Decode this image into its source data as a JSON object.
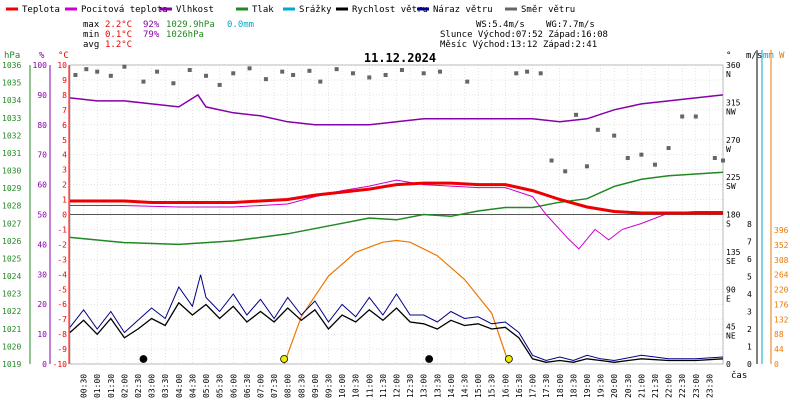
{
  "chart_data": {
    "type": "line",
    "title": "11.12.2024",
    "legend": [
      {
        "label": "Teplota",
        "color": "#ee0000"
      },
      {
        "label": "Pocitová teplota",
        "color": "#cc00cc"
      },
      {
        "label": "Vlhkost",
        "color": "#8800aa"
      },
      {
        "label": "Tlak",
        "color": "#228822"
      },
      {
        "label": "Srážky",
        "color": "#00aacc"
      },
      {
        "label": "Rychlost větru",
        "color": "#000000"
      },
      {
        "label": "Náraz větru",
        "color": "#000088"
      },
      {
        "label": "Směr větru",
        "color": "#666666"
      }
    ],
    "stats": {
      "max_label": "max",
      "max_temp": "2.2°C",
      "max_hum": "92%",
      "max_press": "1029.9hPa",
      "max_rain": "0.0mm",
      "min_label": "min",
      "min_temp": "0.1°C",
      "min_hum": "79%",
      "min_press": "1026hPa",
      "avg_label": "avg",
      "avg_temp": "1.2°C"
    },
    "info": {
      "ws": "WS:5.4m/s",
      "wg": "WG:7.7m/s",
      "sun": "Slunce Východ:07:52  Západ:16:08",
      "moon": "Měsíc  Východ:13:12  Západ:2:41"
    },
    "axis_units": {
      "hpa": "hPa",
      "pct": "%",
      "degc": "°C",
      "deg": "°",
      "ms": "m/s",
      "mm": "mm",
      "w": "W",
      "time": "čas"
    },
    "temp_ticks": [
      "10",
      "9",
      "8",
      "7",
      "6",
      "5",
      "4",
      "3",
      "2",
      "1",
      "0",
      "-1",
      "-2",
      "-3",
      "-4",
      "-5",
      "-6",
      "-7",
      "-8",
      "-9",
      "-10"
    ],
    "hpa_ticks": [
      "1036",
      "1035",
      "1034",
      "1033",
      "1032",
      "1031",
      "1030",
      "1029",
      "1028",
      "1027",
      "1026",
      "1025",
      "1024",
      "1023",
      "1022",
      "1021",
      "1020",
      "1019"
    ],
    "pct_ticks": [
      "100",
      "90",
      "80",
      "70",
      "60",
      "50",
      "40",
      "30",
      "20",
      "10",
      "0"
    ],
    "dir_ticks": [
      {
        "v": 360,
        "l": "360",
        "c": "N"
      },
      {
        "v": 315,
        "l": "315",
        "c": "NW"
      },
      {
        "v": 270,
        "l": "270",
        "c": "W"
      },
      {
        "v": 225,
        "l": "225",
        "c": "SW"
      },
      {
        "v": 180,
        "l": "180",
        "c": "S"
      },
      {
        "v": 135,
        "l": "135",
        "c": "SE"
      },
      {
        "v": 90,
        "l": "90",
        "c": "E"
      },
      {
        "v": 45,
        "l": "45",
        "c": "NE"
      },
      {
        "v": 0,
        "l": "0",
        "c": ""
      }
    ],
    "ms_ticks": [
      "8",
      "7",
      "6",
      "5",
      "4",
      "3",
      "2",
      "1",
      "0"
    ],
    "w_ticks": [
      "396",
      "352",
      "308",
      "264",
      "220",
      "176",
      "132",
      "88",
      "44",
      "0"
    ],
    "x_labels": [
      "00:30",
      "01:00",
      "01:30",
      "02:00",
      "02:30",
      "03:00",
      "03:30",
      "04:00",
      "04:30",
      "05:00",
      "05:30",
      "06:00",
      "06:30",
      "07:00",
      "07:30",
      "08:00",
      "08:30",
      "09:00",
      "09:30",
      "10:00",
      "10:30",
      "11:00",
      "11:30",
      "12:00",
      "12:30",
      "13:00",
      "13:30",
      "14:00",
      "14:30",
      "15:00",
      "15:30",
      "16:00",
      "16:30",
      "17:00",
      "17:30",
      "18:00",
      "18:30",
      "19:00",
      "19:30",
      "20:00",
      "20:30",
      "21:00",
      "21:30",
      "22:00",
      "22:30",
      "23:00",
      "23:30"
    ],
    "temperature": [
      [
        0,
        0.9
      ],
      [
        1,
        0.9
      ],
      [
        2,
        0.9
      ],
      [
        3,
        0.8
      ],
      [
        4,
        0.8
      ],
      [
        5,
        0.8
      ],
      [
        6,
        0.8
      ],
      [
        7,
        0.9
      ],
      [
        8,
        1.0
      ],
      [
        9,
        1.3
      ],
      [
        10,
        1.5
      ],
      [
        11,
        1.7
      ],
      [
        12,
        2.0
      ],
      [
        13,
        2.1
      ],
      [
        14,
        2.1
      ],
      [
        15,
        2.0
      ],
      [
        16,
        2.0
      ],
      [
        17,
        1.6
      ],
      [
        18,
        1.0
      ],
      [
        19,
        0.5
      ],
      [
        20,
        0.2
      ],
      [
        21,
        0.1
      ],
      [
        22,
        0.1
      ],
      [
        23,
        0.1
      ],
      [
        24,
        0.1
      ]
    ],
    "feels_like": [
      [
        0,
        0.6
      ],
      [
        2,
        0.6
      ],
      [
        4,
        0.5
      ],
      [
        6,
        0.5
      ],
      [
        8,
        0.7
      ],
      [
        9,
        1.2
      ],
      [
        10,
        1.6
      ],
      [
        11,
        1.9
      ],
      [
        12,
        2.3
      ],
      [
        13,
        2.0
      ],
      [
        14,
        1.9
      ],
      [
        15,
        1.8
      ],
      [
        16,
        1.8
      ],
      [
        17,
        1.2
      ],
      [
        17.5,
        0.0
      ],
      [
        18.3,
        -1.6
      ],
      [
        18.7,
        -2.3
      ],
      [
        19.3,
        -1.0
      ],
      [
        19.8,
        -1.7
      ],
      [
        20.3,
        -1.0
      ],
      [
        21,
        -0.6
      ],
      [
        22,
        0.1
      ],
      [
        23,
        0.2
      ],
      [
        24,
        0.2
      ]
    ],
    "humidity": [
      [
        0,
        89
      ],
      [
        1,
        88
      ],
      [
        2,
        88
      ],
      [
        3,
        87
      ],
      [
        4,
        86
      ],
      [
        4.7,
        90
      ],
      [
        5,
        86
      ],
      [
        6,
        84
      ],
      [
        7,
        83
      ],
      [
        8,
        81
      ],
      [
        9,
        80
      ],
      [
        10,
        80
      ],
      [
        11,
        80
      ],
      [
        12,
        81
      ],
      [
        13,
        82
      ],
      [
        14,
        82
      ],
      [
        15,
        82
      ],
      [
        16,
        82
      ],
      [
        17,
        82
      ],
      [
        18,
        81
      ],
      [
        19,
        82
      ],
      [
        20,
        85
      ],
      [
        21,
        87
      ],
      [
        22,
        88
      ],
      [
        23,
        89
      ],
      [
        24,
        90
      ]
    ],
    "pressure": [
      [
        0,
        1026.2
      ],
      [
        2,
        1025.9
      ],
      [
        4,
        1025.8
      ],
      [
        6,
        1026.0
      ],
      [
        8,
        1026.4
      ],
      [
        10,
        1027.0
      ],
      [
        11,
        1027.3
      ],
      [
        12,
        1027.2
      ],
      [
        13,
        1027.5
      ],
      [
        14,
        1027.4
      ],
      [
        15,
        1027.7
      ],
      [
        16,
        1027.9
      ],
      [
        17,
        1027.9
      ],
      [
        18,
        1028.2
      ],
      [
        19,
        1028.4
      ],
      [
        20,
        1029.1
      ],
      [
        21,
        1029.5
      ],
      [
        22,
        1029.7
      ],
      [
        23,
        1029.8
      ],
      [
        24,
        1029.9
      ]
    ],
    "wind_speed": [
      [
        0,
        1.8
      ],
      [
        0.5,
        2.5
      ],
      [
        1,
        1.7
      ],
      [
        1.5,
        2.6
      ],
      [
        2,
        1.5
      ],
      [
        2.5,
        2.0
      ],
      [
        3,
        2.6
      ],
      [
        3.5,
        2.2
      ],
      [
        4,
        3.5
      ],
      [
        4.5,
        2.8
      ],
      [
        5,
        3.4
      ],
      [
        5.5,
        2.6
      ],
      [
        6,
        3.3
      ],
      [
        6.5,
        2.4
      ],
      [
        7,
        3.0
      ],
      [
        7.5,
        2.4
      ],
      [
        8,
        3.2
      ],
      [
        8.5,
        2.5
      ],
      [
        9,
        3.1
      ],
      [
        9.5,
        2.0
      ],
      [
        10,
        2.8
      ],
      [
        10.5,
        2.4
      ],
      [
        11,
        3.1
      ],
      [
        11.5,
        2.5
      ],
      [
        12,
        3.2
      ],
      [
        12.5,
        2.4
      ],
      [
        13,
        2.3
      ],
      [
        13.5,
        2.0
      ],
      [
        14,
        2.5
      ],
      [
        14.5,
        2.2
      ],
      [
        15,
        2.3
      ],
      [
        15.5,
        2.0
      ],
      [
        16,
        2.1
      ],
      [
        16.5,
        1.5
      ],
      [
        17,
        0.3
      ],
      [
        17.5,
        0.1
      ],
      [
        18,
        0.2
      ],
      [
        18.5,
        0.1
      ],
      [
        19,
        0.3
      ],
      [
        19.5,
        0.2
      ],
      [
        20,
        0.1
      ],
      [
        21,
        0.3
      ],
      [
        22,
        0.2
      ],
      [
        23,
        0.2
      ],
      [
        24,
        0.3
      ]
    ],
    "wind_gust": [
      [
        0,
        2.1
      ],
      [
        0.5,
        3.1
      ],
      [
        1,
        2.0
      ],
      [
        1.5,
        3.0
      ],
      [
        2,
        1.8
      ],
      [
        2.5,
        2.5
      ],
      [
        3,
        3.2
      ],
      [
        3.5,
        2.6
      ],
      [
        4,
        4.4
      ],
      [
        4.5,
        3.3
      ],
      [
        4.8,
        5.1
      ],
      [
        5,
        3.8
      ],
      [
        5.5,
        3.0
      ],
      [
        6,
        4.0
      ],
      [
        6.5,
        2.8
      ],
      [
        7,
        3.7
      ],
      [
        7.5,
        2.6
      ],
      [
        8,
        3.8
      ],
      [
        8.5,
        2.8
      ],
      [
        9,
        3.6
      ],
      [
        9.5,
        2.4
      ],
      [
        10,
        3.4
      ],
      [
        10.5,
        2.7
      ],
      [
        11,
        3.8
      ],
      [
        11.5,
        2.8
      ],
      [
        12,
        4.0
      ],
      [
        12.5,
        2.8
      ],
      [
        13,
        2.8
      ],
      [
        13.5,
        2.4
      ],
      [
        14,
        3.0
      ],
      [
        14.5,
        2.6
      ],
      [
        15,
        2.7
      ],
      [
        15.5,
        2.3
      ],
      [
        16,
        2.4
      ],
      [
        16.5,
        1.8
      ],
      [
        17,
        0.5
      ],
      [
        17.5,
        0.2
      ],
      [
        18,
        0.4
      ],
      [
        18.5,
        0.2
      ],
      [
        19,
        0.5
      ],
      [
        19.5,
        0.3
      ],
      [
        20,
        0.2
      ],
      [
        21,
        0.5
      ],
      [
        22,
        0.3
      ],
      [
        23,
        0.3
      ],
      [
        24,
        0.4
      ]
    ],
    "wind_dir": [
      [
        0.2,
        348
      ],
      [
        0.6,
        355
      ],
      [
        1.0,
        352
      ],
      [
        1.5,
        347
      ],
      [
        2.0,
        358
      ],
      [
        2.7,
        340
      ],
      [
        3.2,
        352
      ],
      [
        3.8,
        338
      ],
      [
        4.4,
        354
      ],
      [
        5.0,
        347
      ],
      [
        5.5,
        336
      ],
      [
        6.0,
        350
      ],
      [
        6.6,
        356
      ],
      [
        7.2,
        343
      ],
      [
        7.8,
        352
      ],
      [
        8.2,
        348
      ],
      [
        8.8,
        353
      ],
      [
        9.2,
        340
      ],
      [
        9.8,
        355
      ],
      [
        10.4,
        350
      ],
      [
        11.0,
        345
      ],
      [
        11.6,
        348
      ],
      [
        12.2,
        354
      ],
      [
        13.0,
        350
      ],
      [
        13.6,
        352
      ],
      [
        14.6,
        340
      ],
      [
        16.4,
        350
      ],
      [
        16.8,
        352
      ],
      [
        17.3,
        350
      ],
      [
        17.7,
        245
      ],
      [
        18.2,
        232
      ],
      [
        18.6,
        300
      ],
      [
        19.0,
        238
      ],
      [
        19.4,
        282
      ],
      [
        20.0,
        275
      ],
      [
        20.5,
        248
      ],
      [
        21.0,
        252
      ],
      [
        21.5,
        240
      ],
      [
        22.0,
        260
      ],
      [
        22.5,
        298
      ],
      [
        23.0,
        298
      ],
      [
        23.7,
        248
      ],
      [
        24,
        245
      ]
    ],
    "sun_curve": [
      [
        7.87,
        0
      ],
      [
        8.5,
        140
      ],
      [
        9.5,
        260
      ],
      [
        10.5,
        330
      ],
      [
        11.5,
        360
      ],
      [
        12.0,
        365
      ],
      [
        12.5,
        360
      ],
      [
        13.5,
        320
      ],
      [
        14.5,
        250
      ],
      [
        15.5,
        150
      ],
      [
        16.13,
        0
      ]
    ],
    "markers": [
      {
        "t": 2.7,
        "color": "#000000"
      },
      {
        "t": 7.87,
        "color": "#eeee00"
      },
      {
        "t": 13.2,
        "color": "#000000"
      },
      {
        "t": 16.13,
        "color": "#eeee00"
      }
    ]
  }
}
